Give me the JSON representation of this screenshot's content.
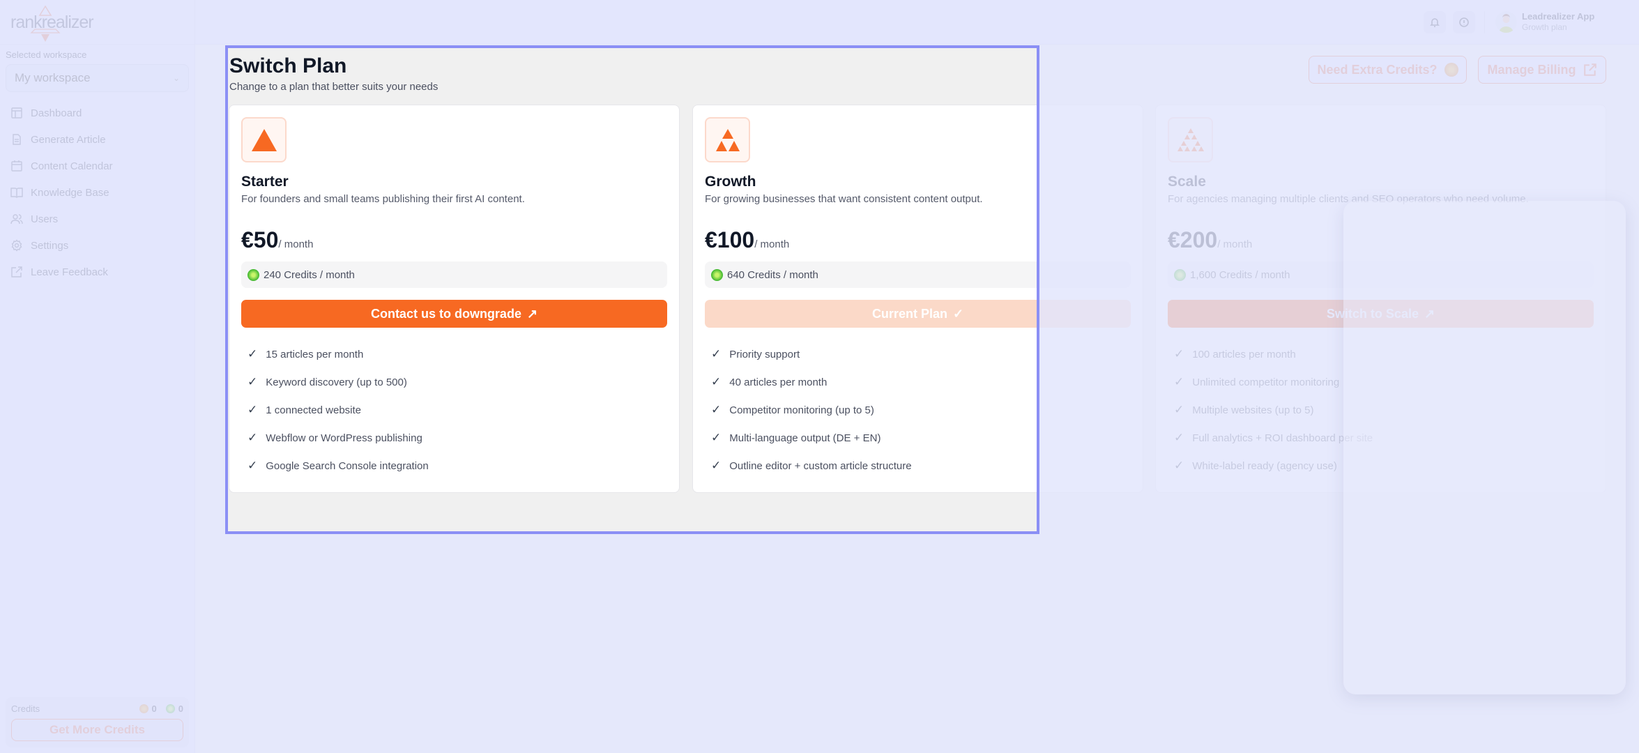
{
  "brand": {
    "logo_text": "rankrealizer",
    "accent": "#f76922"
  },
  "sidebar": {
    "workspace_label": "Selected workspace",
    "workspace_value": "My workspace",
    "items": [
      {
        "label": "Dashboard",
        "icon": "layout-icon"
      },
      {
        "label": "Generate Article",
        "icon": "document-icon"
      },
      {
        "label": "Content Calendar",
        "icon": "calendar-icon"
      },
      {
        "label": "Knowledge Base",
        "icon": "book-icon"
      },
      {
        "label": "Users",
        "icon": "users-icon"
      },
      {
        "label": "Settings",
        "icon": "gear-icon"
      },
      {
        "label": "Leave Feedback",
        "icon": "external-link-icon"
      }
    ],
    "credits": {
      "label": "Credits",
      "orange_count": "0",
      "green_count": "0",
      "button": "Get More Credits"
    }
  },
  "header": {
    "user_name": "Leadrealizer App",
    "user_plan": "Growth plan"
  },
  "page": {
    "title": "Switch Plan",
    "subtitle": "Change to a plan that better suits your needs",
    "extra_credits_button": "Need Extra Credits?",
    "billing_button": "Manage Billing"
  },
  "plans": [
    {
      "name": "Starter",
      "description": "For founders and small teams publishing their first AI content.",
      "price": "€50",
      "period": "/ month",
      "credits": "240 Credits / month",
      "button": "Contact us to downgrade",
      "button_icon": "arrow-up-right-icon",
      "features": [
        "15 articles per month",
        "Keyword discovery (up to 500)",
        "1 connected website",
        "Webflow or WordPress publishing",
        "Google Search Console integration"
      ]
    },
    {
      "name": "Growth",
      "description": "For growing businesses that want consistent content output.",
      "price": "€100",
      "period": "/ month",
      "credits": "640 Credits / month",
      "button": "Current Plan",
      "button_icon": "check-icon",
      "features": [
        "Priority support",
        "40 articles per month",
        "Competitor monitoring (up to 5)",
        "Multi-language output (DE + EN)",
        "Outline editor + custom article structure"
      ]
    },
    {
      "name": "Scale",
      "description": "For agencies managing multiple clients and SEO operators who need volume.",
      "price": "€200",
      "period": "/ month",
      "credits": "1,600 Credits / month",
      "button": "Switch to Scale",
      "button_icon": "arrow-up-right-icon",
      "features": [
        "100 articles per month",
        "Unlimited competitor monitoring",
        "Multiple websites (up to 5)",
        "Full analytics + ROI dashboard per site",
        "White-label ready (agency use)"
      ]
    }
  ]
}
